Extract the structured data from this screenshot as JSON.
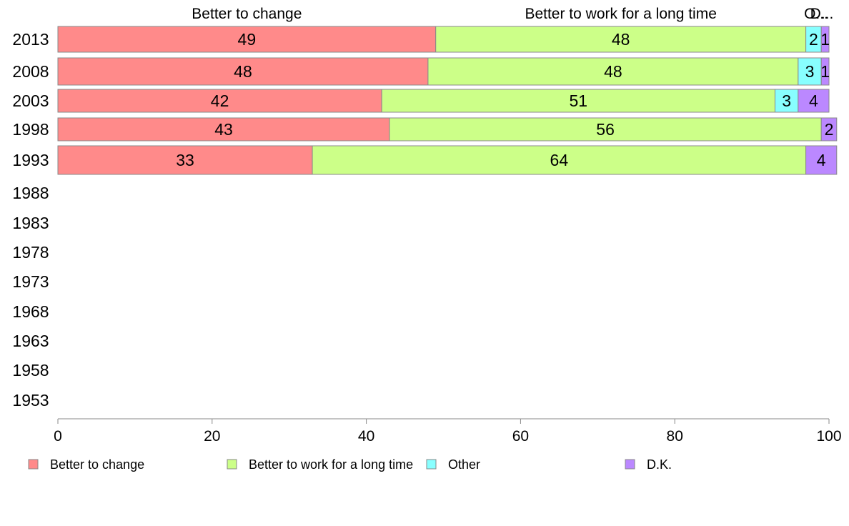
{
  "chart_data": {
    "type": "bar",
    "orientation": "horizontal",
    "stacked": true,
    "categories": [
      "2013",
      "2008",
      "2003",
      "1998",
      "1993",
      "1988",
      "1983",
      "1978",
      "1973",
      "1968",
      "1963",
      "1958",
      "1953"
    ],
    "series": [
      {
        "name": "Better to change",
        "color": "#ff8a8a",
        "values": [
          49,
          48,
          42,
          43,
          33,
          null,
          null,
          null,
          null,
          null,
          null,
          null,
          null
        ]
      },
      {
        "name": "Better to work for a long time",
        "color": "#ccff88",
        "values": [
          48,
          48,
          51,
          56,
          64,
          null,
          null,
          null,
          null,
          null,
          null,
          null,
          null
        ]
      },
      {
        "name": "Other",
        "color": "#88ffff",
        "values": [
          2,
          3,
          3,
          0,
          0,
          null,
          null,
          null,
          null,
          null,
          null,
          null,
          null
        ]
      },
      {
        "name": "D.K.",
        "color": "#bb88ff",
        "values": [
          1,
          1,
          4,
          2,
          4,
          null,
          null,
          null,
          null,
          null,
          null,
          null,
          null
        ]
      }
    ],
    "top_labels": [
      "Better to change",
      "Better to work for a long time",
      "O...",
      "D..."
    ],
    "xlim": [
      0,
      100
    ],
    "x_ticks": [
      "0",
      "20",
      "40",
      "60",
      "80",
      "100"
    ],
    "legend_position": "bottom",
    "grid": false
  }
}
